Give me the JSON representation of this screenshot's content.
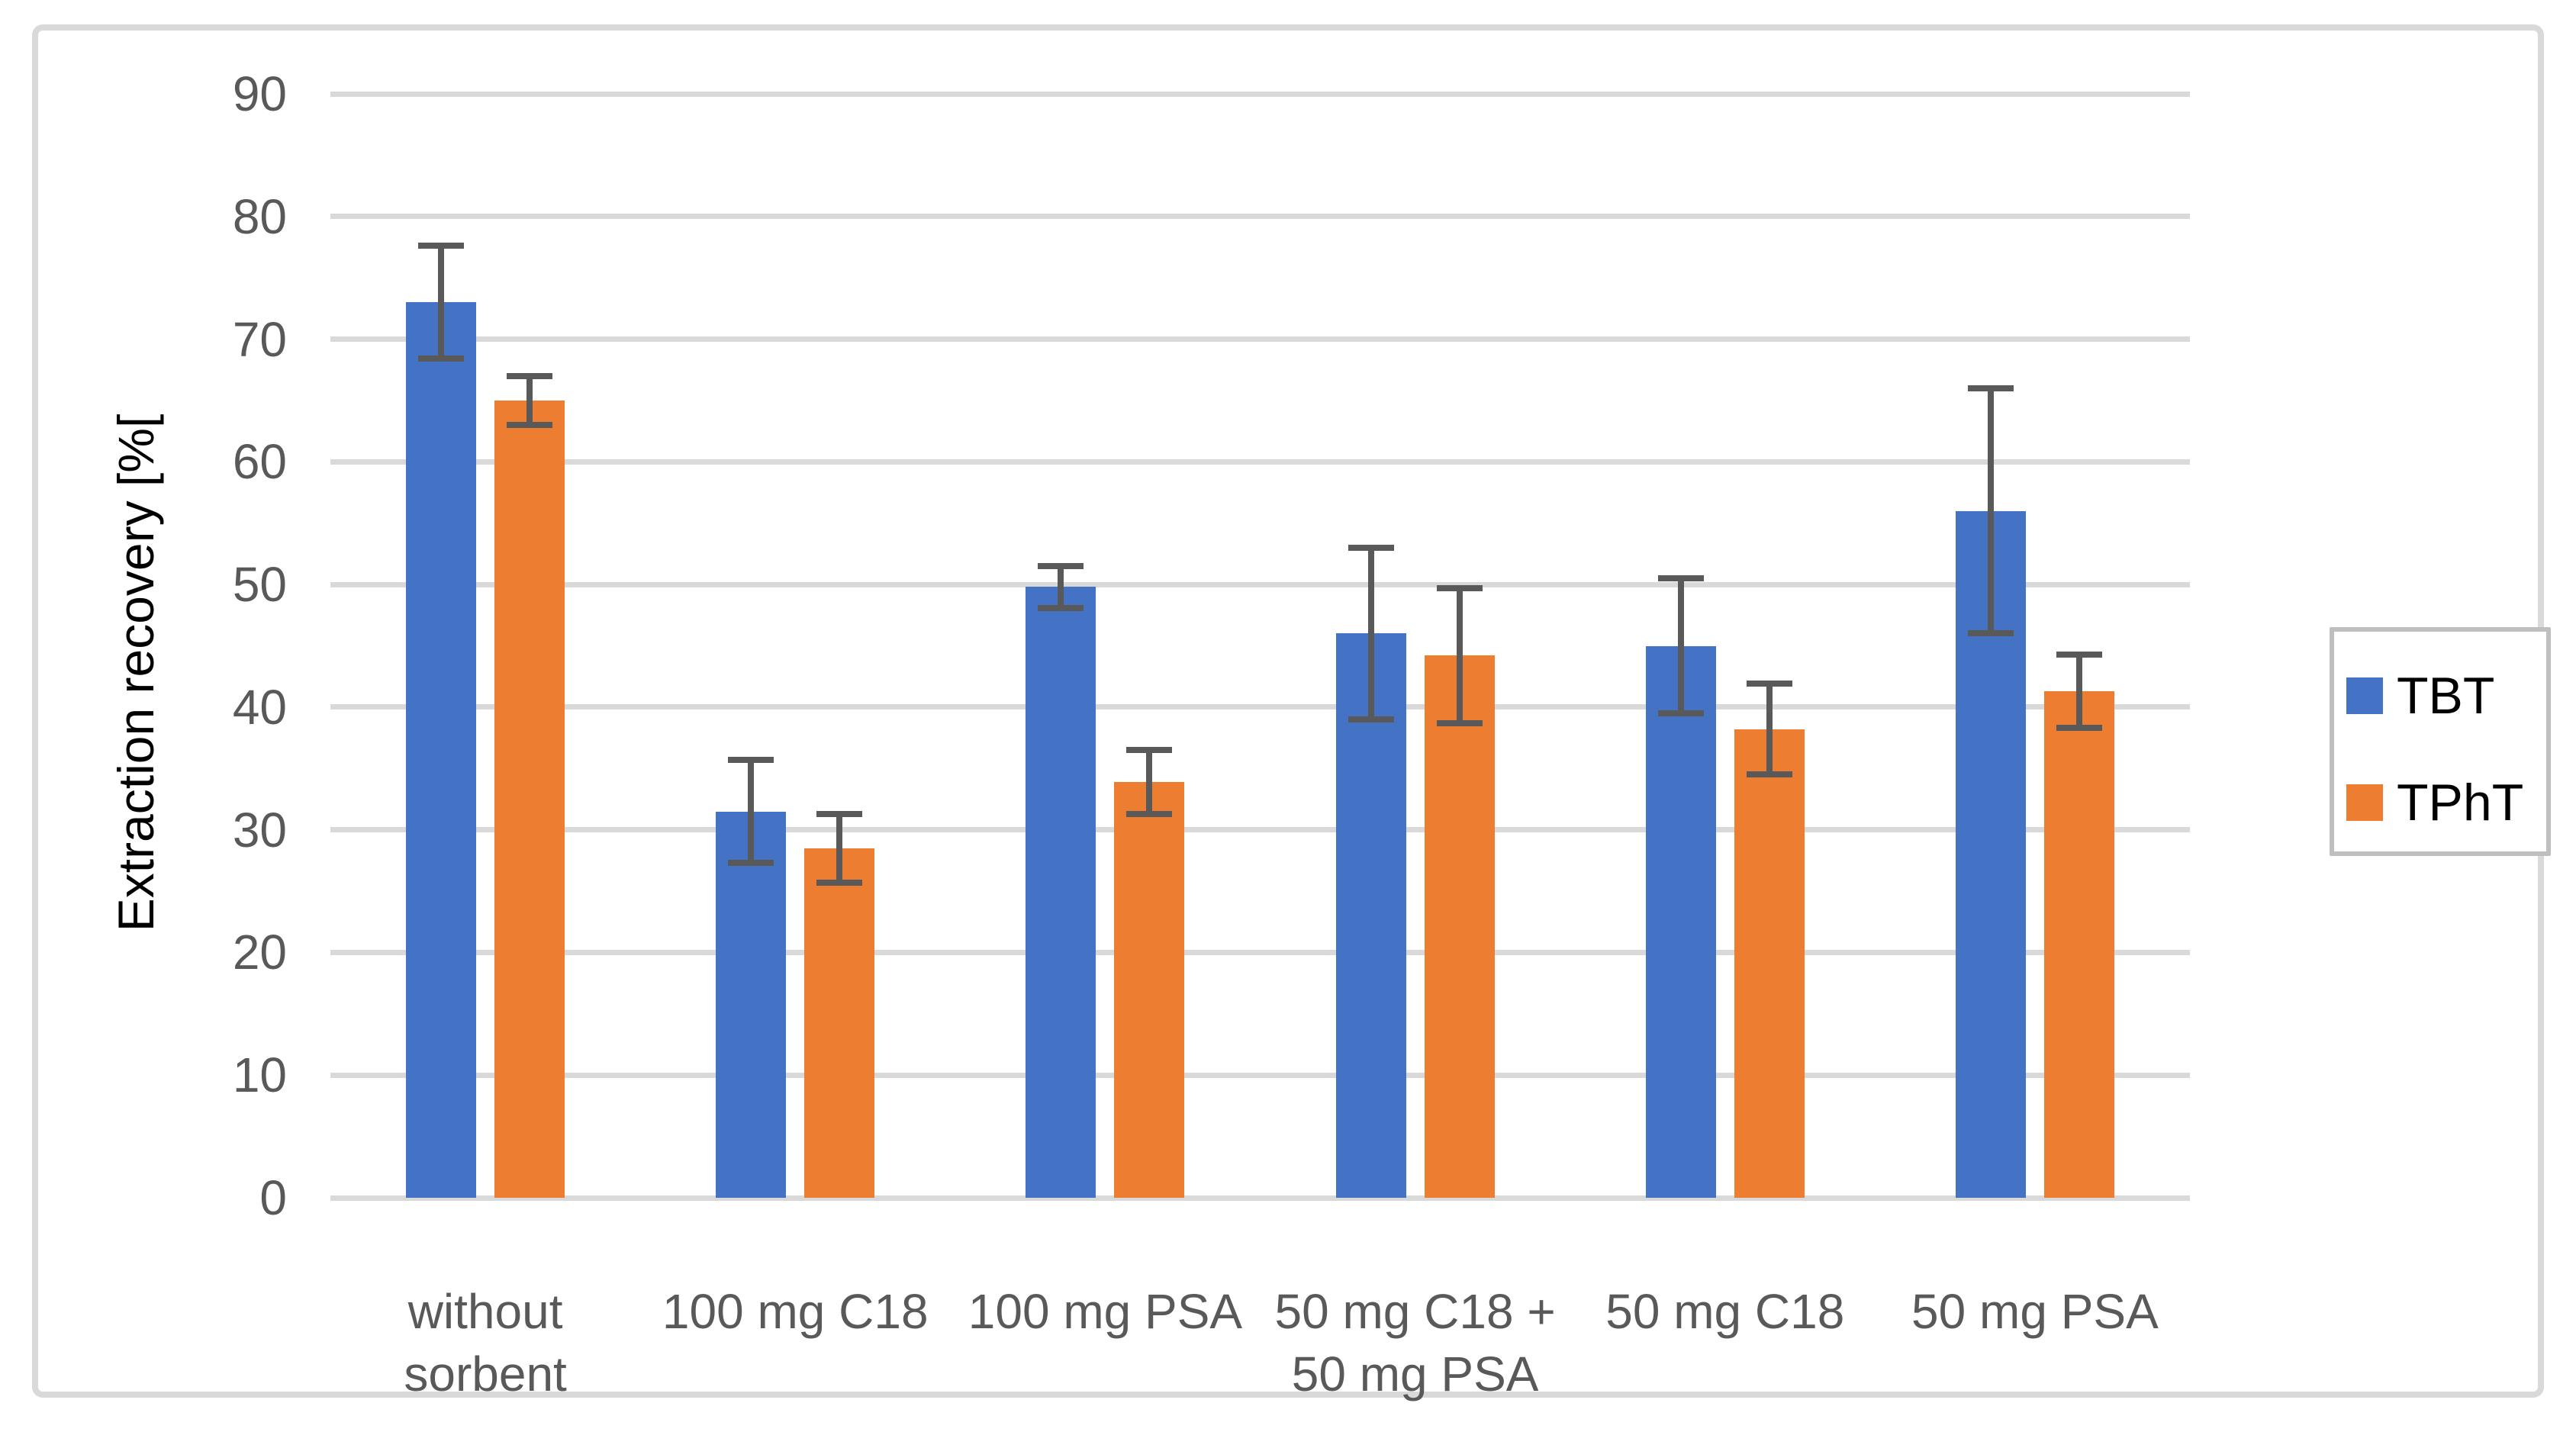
{
  "chart_data": {
    "type": "bar",
    "title": "",
    "xlabel": "",
    "ylabel": "Extraction recovery [%[",
    "ylim": [
      0,
      90
    ],
    "yticks": [
      0,
      10,
      20,
      30,
      40,
      50,
      60,
      70,
      80,
      90
    ],
    "grid": true,
    "legend_position": "right",
    "categories": [
      "without\nsorbent",
      "100 mg C18",
      "100 mg PSA",
      "50 mg C18 +\n50 mg PSA",
      "50 mg C18",
      "50 mg PSA"
    ],
    "series": [
      {
        "name": "TBT",
        "color": "#4472C4",
        "values": [
          73,
          31.5,
          49.8,
          46,
          45,
          56
        ],
        "errors": [
          4.6,
          4.2,
          1.7,
          7,
          5.5,
          10
        ]
      },
      {
        "name": "TPhT",
        "color": "#ED7D31",
        "values": [
          65,
          28.5,
          33.9,
          44.2,
          38.2,
          41.3
        ],
        "errors": [
          2,
          2.8,
          2.6,
          5.5,
          3.7,
          3
        ]
      }
    ]
  },
  "colors": {
    "background": "#FFFFFF",
    "chart_border": "#D9D9D9",
    "gridline": "#D9D9D9",
    "error_bar": "#595959",
    "tick_text": "#595959",
    "category_text": "#595959",
    "axis_title_text": "#000000",
    "legend_border": "#BFBFBF",
    "legend_text": "#000000"
  }
}
